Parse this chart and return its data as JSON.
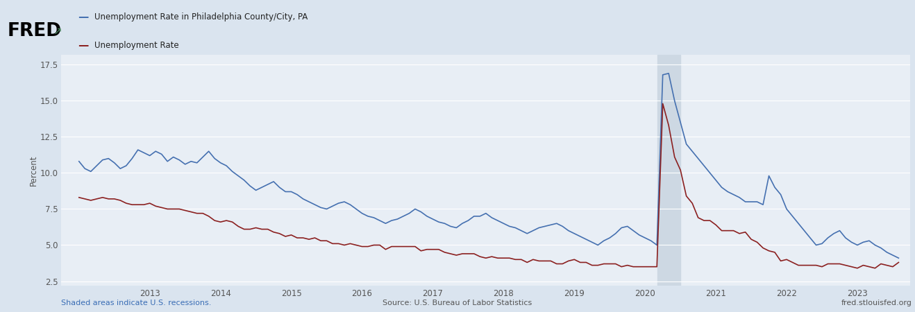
{
  "legend_philly": "Unemployment Rate in Philadelphia County/City, PA",
  "legend_national": "Unemployment Rate",
  "ylabel": "Percent",
  "source_text": "Source: U.S. Bureau of Labor Statistics",
  "fred_url": "fred.stlouisfed.org",
  "shaded_text": "Shaded areas indicate U.S. recessions.",
  "background_color": "#dae4ef",
  "plot_bg_color": "#e8eef5",
  "grid_color": "#ffffff",
  "philly_color": "#4570b0",
  "national_color": "#8b2020",
  "recession_color": "#cdd8e3",
  "ylim": [
    2.2,
    18.2
  ],
  "yticks": [
    2.5,
    5.0,
    7.5,
    10.0,
    12.5,
    15.0,
    17.5
  ],
  "recession_start": 2020.17,
  "recession_end": 2020.5,
  "philly_data": [
    [
      2012.0,
      10.8
    ],
    [
      2012.083,
      10.3
    ],
    [
      2012.167,
      10.1
    ],
    [
      2012.25,
      10.5
    ],
    [
      2012.333,
      10.9
    ],
    [
      2012.417,
      11.0
    ],
    [
      2012.5,
      10.7
    ],
    [
      2012.583,
      10.3
    ],
    [
      2012.667,
      10.5
    ],
    [
      2012.75,
      11.0
    ],
    [
      2012.833,
      11.6
    ],
    [
      2012.917,
      11.4
    ],
    [
      2013.0,
      11.2
    ],
    [
      2013.083,
      11.5
    ],
    [
      2013.167,
      11.3
    ],
    [
      2013.25,
      10.8
    ],
    [
      2013.333,
      11.1
    ],
    [
      2013.417,
      10.9
    ],
    [
      2013.5,
      10.6
    ],
    [
      2013.583,
      10.8
    ],
    [
      2013.667,
      10.7
    ],
    [
      2013.75,
      11.1
    ],
    [
      2013.833,
      11.5
    ],
    [
      2013.917,
      11.0
    ],
    [
      2014.0,
      10.7
    ],
    [
      2014.083,
      10.5
    ],
    [
      2014.167,
      10.1
    ],
    [
      2014.25,
      9.8
    ],
    [
      2014.333,
      9.5
    ],
    [
      2014.417,
      9.1
    ],
    [
      2014.5,
      8.8
    ],
    [
      2014.583,
      9.0
    ],
    [
      2014.667,
      9.2
    ],
    [
      2014.75,
      9.4
    ],
    [
      2014.833,
      9.0
    ],
    [
      2014.917,
      8.7
    ],
    [
      2015.0,
      8.7
    ],
    [
      2015.083,
      8.5
    ],
    [
      2015.167,
      8.2
    ],
    [
      2015.25,
      8.0
    ],
    [
      2015.333,
      7.8
    ],
    [
      2015.417,
      7.6
    ],
    [
      2015.5,
      7.5
    ],
    [
      2015.583,
      7.7
    ],
    [
      2015.667,
      7.9
    ],
    [
      2015.75,
      8.0
    ],
    [
      2015.833,
      7.8
    ],
    [
      2015.917,
      7.5
    ],
    [
      2016.0,
      7.2
    ],
    [
      2016.083,
      7.0
    ],
    [
      2016.167,
      6.9
    ],
    [
      2016.25,
      6.7
    ],
    [
      2016.333,
      6.5
    ],
    [
      2016.417,
      6.7
    ],
    [
      2016.5,
      6.8
    ],
    [
      2016.583,
      7.0
    ],
    [
      2016.667,
      7.2
    ],
    [
      2016.75,
      7.5
    ],
    [
      2016.833,
      7.3
    ],
    [
      2016.917,
      7.0
    ],
    [
      2017.0,
      6.8
    ],
    [
      2017.083,
      6.6
    ],
    [
      2017.167,
      6.5
    ],
    [
      2017.25,
      6.3
    ],
    [
      2017.333,
      6.2
    ],
    [
      2017.417,
      6.5
    ],
    [
      2017.5,
      6.7
    ],
    [
      2017.583,
      7.0
    ],
    [
      2017.667,
      7.0
    ],
    [
      2017.75,
      7.2
    ],
    [
      2017.833,
      6.9
    ],
    [
      2017.917,
      6.7
    ],
    [
      2018.0,
      6.5
    ],
    [
      2018.083,
      6.3
    ],
    [
      2018.167,
      6.2
    ],
    [
      2018.25,
      6.0
    ],
    [
      2018.333,
      5.8
    ],
    [
      2018.417,
      6.0
    ],
    [
      2018.5,
      6.2
    ],
    [
      2018.583,
      6.3
    ],
    [
      2018.667,
      6.4
    ],
    [
      2018.75,
      6.5
    ],
    [
      2018.833,
      6.3
    ],
    [
      2018.917,
      6.0
    ],
    [
      2019.0,
      5.8
    ],
    [
      2019.083,
      5.6
    ],
    [
      2019.167,
      5.4
    ],
    [
      2019.25,
      5.2
    ],
    [
      2019.333,
      5.0
    ],
    [
      2019.417,
      5.3
    ],
    [
      2019.5,
      5.5
    ],
    [
      2019.583,
      5.8
    ],
    [
      2019.667,
      6.2
    ],
    [
      2019.75,
      6.3
    ],
    [
      2019.833,
      6.0
    ],
    [
      2019.917,
      5.7
    ],
    [
      2020.0,
      5.5
    ],
    [
      2020.083,
      5.3
    ],
    [
      2020.167,
      5.0
    ],
    [
      2020.25,
      16.8
    ],
    [
      2020.333,
      16.9
    ],
    [
      2020.417,
      15.0
    ],
    [
      2020.5,
      13.5
    ],
    [
      2020.583,
      12.0
    ],
    [
      2020.667,
      11.5
    ],
    [
      2020.75,
      11.0
    ],
    [
      2020.833,
      10.5
    ],
    [
      2020.917,
      10.0
    ],
    [
      2021.0,
      9.5
    ],
    [
      2021.083,
      9.0
    ],
    [
      2021.167,
      8.7
    ],
    [
      2021.25,
      8.5
    ],
    [
      2021.333,
      8.3
    ],
    [
      2021.417,
      8.0
    ],
    [
      2021.5,
      8.0
    ],
    [
      2021.583,
      8.0
    ],
    [
      2021.667,
      7.8
    ],
    [
      2021.75,
      9.8
    ],
    [
      2021.833,
      9.0
    ],
    [
      2021.917,
      8.5
    ],
    [
      2022.0,
      7.5
    ],
    [
      2022.083,
      7.0
    ],
    [
      2022.167,
      6.5
    ],
    [
      2022.25,
      6.0
    ],
    [
      2022.333,
      5.5
    ],
    [
      2022.417,
      5.0
    ],
    [
      2022.5,
      5.1
    ],
    [
      2022.583,
      5.5
    ],
    [
      2022.667,
      5.8
    ],
    [
      2022.75,
      6.0
    ],
    [
      2022.833,
      5.5
    ],
    [
      2022.917,
      5.2
    ],
    [
      2023.0,
      5.0
    ],
    [
      2023.083,
      5.2
    ],
    [
      2023.167,
      5.3
    ],
    [
      2023.25,
      5.0
    ],
    [
      2023.333,
      4.8
    ],
    [
      2023.417,
      4.5
    ],
    [
      2023.5,
      4.3
    ],
    [
      2023.583,
      4.1
    ]
  ],
  "national_data": [
    [
      2012.0,
      8.3
    ],
    [
      2012.083,
      8.2
    ],
    [
      2012.167,
      8.1
    ],
    [
      2012.25,
      8.2
    ],
    [
      2012.333,
      8.3
    ],
    [
      2012.417,
      8.2
    ],
    [
      2012.5,
      8.2
    ],
    [
      2012.583,
      8.1
    ],
    [
      2012.667,
      7.9
    ],
    [
      2012.75,
      7.8
    ],
    [
      2012.833,
      7.8
    ],
    [
      2012.917,
      7.8
    ],
    [
      2013.0,
      7.9
    ],
    [
      2013.083,
      7.7
    ],
    [
      2013.167,
      7.6
    ],
    [
      2013.25,
      7.5
    ],
    [
      2013.333,
      7.5
    ],
    [
      2013.417,
      7.5
    ],
    [
      2013.5,
      7.4
    ],
    [
      2013.583,
      7.3
    ],
    [
      2013.667,
      7.2
    ],
    [
      2013.75,
      7.2
    ],
    [
      2013.833,
      7.0
    ],
    [
      2013.917,
      6.7
    ],
    [
      2014.0,
      6.6
    ],
    [
      2014.083,
      6.7
    ],
    [
      2014.167,
      6.6
    ],
    [
      2014.25,
      6.3
    ],
    [
      2014.333,
      6.1
    ],
    [
      2014.417,
      6.1
    ],
    [
      2014.5,
      6.2
    ],
    [
      2014.583,
      6.1
    ],
    [
      2014.667,
      6.1
    ],
    [
      2014.75,
      5.9
    ],
    [
      2014.833,
      5.8
    ],
    [
      2014.917,
      5.6
    ],
    [
      2015.0,
      5.7
    ],
    [
      2015.083,
      5.5
    ],
    [
      2015.167,
      5.5
    ],
    [
      2015.25,
      5.4
    ],
    [
      2015.333,
      5.5
    ],
    [
      2015.417,
      5.3
    ],
    [
      2015.5,
      5.3
    ],
    [
      2015.583,
      5.1
    ],
    [
      2015.667,
      5.1
    ],
    [
      2015.75,
      5.0
    ],
    [
      2015.833,
      5.1
    ],
    [
      2015.917,
      5.0
    ],
    [
      2016.0,
      4.9
    ],
    [
      2016.083,
      4.9
    ],
    [
      2016.167,
      5.0
    ],
    [
      2016.25,
      5.0
    ],
    [
      2016.333,
      4.7
    ],
    [
      2016.417,
      4.9
    ],
    [
      2016.5,
      4.9
    ],
    [
      2016.583,
      4.9
    ],
    [
      2016.667,
      4.9
    ],
    [
      2016.75,
      4.9
    ],
    [
      2016.833,
      4.6
    ],
    [
      2016.917,
      4.7
    ],
    [
      2017.0,
      4.7
    ],
    [
      2017.083,
      4.7
    ],
    [
      2017.167,
      4.5
    ],
    [
      2017.25,
      4.4
    ],
    [
      2017.333,
      4.3
    ],
    [
      2017.417,
      4.4
    ],
    [
      2017.5,
      4.4
    ],
    [
      2017.583,
      4.4
    ],
    [
      2017.667,
      4.2
    ],
    [
      2017.75,
      4.1
    ],
    [
      2017.833,
      4.2
    ],
    [
      2017.917,
      4.1
    ],
    [
      2018.0,
      4.1
    ],
    [
      2018.083,
      4.1
    ],
    [
      2018.167,
      4.0
    ],
    [
      2018.25,
      4.0
    ],
    [
      2018.333,
      3.8
    ],
    [
      2018.417,
      4.0
    ],
    [
      2018.5,
      3.9
    ],
    [
      2018.583,
      3.9
    ],
    [
      2018.667,
      3.9
    ],
    [
      2018.75,
      3.7
    ],
    [
      2018.833,
      3.7
    ],
    [
      2018.917,
      3.9
    ],
    [
      2019.0,
      4.0
    ],
    [
      2019.083,
      3.8
    ],
    [
      2019.167,
      3.8
    ],
    [
      2019.25,
      3.6
    ],
    [
      2019.333,
      3.6
    ],
    [
      2019.417,
      3.7
    ],
    [
      2019.5,
      3.7
    ],
    [
      2019.583,
      3.7
    ],
    [
      2019.667,
      3.5
    ],
    [
      2019.75,
      3.6
    ],
    [
      2019.833,
      3.5
    ],
    [
      2019.917,
      3.5
    ],
    [
      2020.0,
      3.5
    ],
    [
      2020.083,
      3.5
    ],
    [
      2020.167,
      3.5
    ],
    [
      2020.25,
      14.8
    ],
    [
      2020.333,
      13.3
    ],
    [
      2020.417,
      11.1
    ],
    [
      2020.5,
      10.2
    ],
    [
      2020.583,
      8.4
    ],
    [
      2020.667,
      7.9
    ],
    [
      2020.75,
      6.9
    ],
    [
      2020.833,
      6.7
    ],
    [
      2020.917,
      6.7
    ],
    [
      2021.0,
      6.4
    ],
    [
      2021.083,
      6.0
    ],
    [
      2021.167,
      6.0
    ],
    [
      2021.25,
      6.0
    ],
    [
      2021.333,
      5.8
    ],
    [
      2021.417,
      5.9
    ],
    [
      2021.5,
      5.4
    ],
    [
      2021.583,
      5.2
    ],
    [
      2021.667,
      4.8
    ],
    [
      2021.75,
      4.6
    ],
    [
      2021.833,
      4.5
    ],
    [
      2021.917,
      3.9
    ],
    [
      2022.0,
      4.0
    ],
    [
      2022.083,
      3.8
    ],
    [
      2022.167,
      3.6
    ],
    [
      2022.25,
      3.6
    ],
    [
      2022.333,
      3.6
    ],
    [
      2022.417,
      3.6
    ],
    [
      2022.5,
      3.5
    ],
    [
      2022.583,
      3.7
    ],
    [
      2022.667,
      3.7
    ],
    [
      2022.75,
      3.7
    ],
    [
      2022.833,
      3.6
    ],
    [
      2022.917,
      3.5
    ],
    [
      2023.0,
      3.4
    ],
    [
      2023.083,
      3.6
    ],
    [
      2023.167,
      3.5
    ],
    [
      2023.25,
      3.4
    ],
    [
      2023.333,
      3.7
    ],
    [
      2023.417,
      3.6
    ],
    [
      2023.5,
      3.5
    ],
    [
      2023.583,
      3.8
    ]
  ],
  "xlim_start": 2011.75,
  "xlim_end": 2023.75,
  "xtick_years": [
    2013,
    2014,
    2015,
    2016,
    2017,
    2018,
    2019,
    2020,
    2021,
    2022,
    2023
  ]
}
